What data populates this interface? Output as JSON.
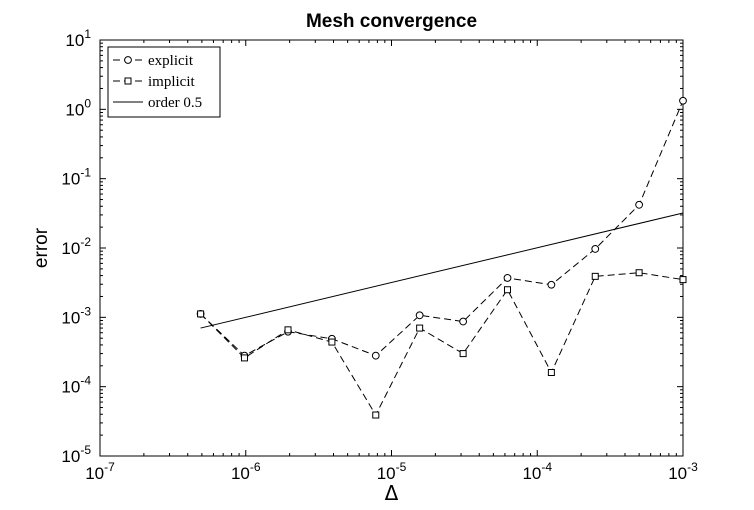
{
  "chart_data": {
    "type": "line",
    "title": "Mesh convergence",
    "xlabel": "Δ",
    "ylabel": "error",
    "xscale": "log",
    "yscale": "log",
    "xlim": [
      1e-07,
      0.001
    ],
    "ylim": [
      1e-05,
      10
    ],
    "x_ticks": [
      {
        "base": "10",
        "exp": "-7",
        "value": 1e-07
      },
      {
        "base": "10",
        "exp": "-6",
        "value": 1e-06
      },
      {
        "base": "10",
        "exp": "-5",
        "value": 1e-05
      },
      {
        "base": "10",
        "exp": "-4",
        "value": 0.0001
      },
      {
        "base": "10",
        "exp": "-3",
        "value": 0.001
      }
    ],
    "y_ticks": [
      {
        "base": "10",
        "exp": "-5",
        "value": 1e-05
      },
      {
        "base": "10",
        "exp": "-4",
        "value": 0.0001
      },
      {
        "base": "10",
        "exp": "-3",
        "value": 0.001
      },
      {
        "base": "10",
        "exp": "-2",
        "value": 0.01
      },
      {
        "base": "10",
        "exp": "-1",
        "value": 0.1
      },
      {
        "base": "10",
        "exp": "0",
        "value": 1
      },
      {
        "base": "10",
        "exp": "1",
        "value": 10
      }
    ],
    "grid": false,
    "legend_position": "top-left",
    "series": [
      {
        "name": "explicit",
        "marker": "circle",
        "line_style": "dashed",
        "color": "#000000",
        "points": [
          [
            4.9e-07,
            0.00112
          ],
          [
            9.8e-07,
            0.00028
          ],
          [
            1.95e-06,
            0.00062
          ],
          [
            3.9e-06,
            0.00049
          ],
          [
            7.8e-06,
            0.00028
          ],
          [
            1.56e-05,
            0.00107
          ],
          [
            3.1e-05,
            0.00087
          ],
          [
            6.25e-05,
            0.0037
          ],
          [
            0.000125,
            0.00295
          ],
          [
            0.00025,
            0.0097
          ],
          [
            0.0005,
            0.042
          ],
          [
            0.001,
            1.33
          ]
        ]
      },
      {
        "name": "implicit",
        "marker": "square",
        "line_style": "dashed",
        "color": "#000000",
        "points": [
          [
            4.9e-07,
            0.00112
          ],
          [
            9.8e-07,
            0.00026
          ],
          [
            1.95e-06,
            0.00066
          ],
          [
            3.9e-06,
            0.00044
          ],
          [
            7.8e-06,
            3.9e-05
          ],
          [
            1.56e-05,
            0.0007
          ],
          [
            3.1e-05,
            0.0003
          ],
          [
            6.25e-05,
            0.0025
          ],
          [
            0.000125,
            0.00016
          ],
          [
            0.00025,
            0.0039
          ],
          [
            0.0005,
            0.0044
          ],
          [
            0.001,
            0.0035
          ]
        ]
      },
      {
        "name": "order 0.5",
        "marker": "none",
        "line_style": "solid",
        "color": "#000000",
        "points": [
          [
            4.9e-07,
            0.0007
          ],
          [
            0.001,
            0.032
          ]
        ]
      }
    ]
  }
}
